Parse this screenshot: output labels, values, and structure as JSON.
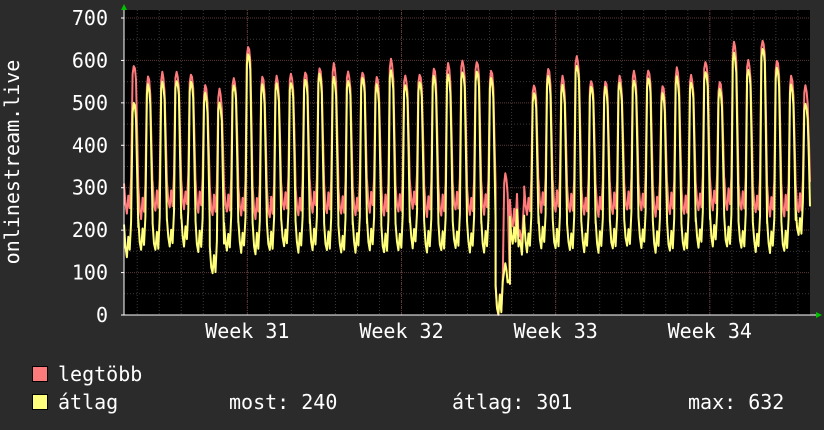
{
  "chart_data": {
    "type": "line",
    "ylabel": "onlinestream.live",
    "ylim": [
      0,
      700
    ],
    "yticks": [
      0,
      100,
      200,
      300,
      400,
      500,
      600,
      700
    ],
    "xlim": [
      30.2,
      34.65
    ],
    "xticks": [
      {
        "label": "Week 31",
        "x": 31
      },
      {
        "label": "Week 32",
        "x": 32
      },
      {
        "label": "Week 33",
        "x": 33
      },
      {
        "label": "Week 34",
        "x": 34
      }
    ],
    "grid": true,
    "background": "#000000",
    "gridColor": "#4a4a4a",
    "series": [
      {
        "name": "legtöbb",
        "color": "#ff7b7b",
        "peaks": [
          590,
          560,
          570,
          575,
          570,
          540,
          530,
          560,
          635,
          560,
          560,
          570,
          575,
          580,
          590,
          575,
          575,
          560,
          600,
          565,
          570,
          580,
          590,
          600,
          600,
          575,
          330,
          200,
          545,
          580,
          560,
          610,
          555,
          550,
          560,
          575,
          580,
          540,
          580,
          565,
          600,
          550,
          640,
          600,
          650,
          600,
          560,
          540
        ],
        "troughs": [
          240,
          230,
          245,
          250,
          250,
          245,
          235,
          240,
          235,
          230,
          230,
          245,
          235,
          245,
          240,
          235,
          235,
          245,
          235,
          240,
          250,
          235,
          235,
          245,
          235,
          240,
          0,
          205,
          235,
          245,
          245,
          240,
          235,
          235,
          240,
          245,
          245,
          235,
          240,
          235,
          245,
          250,
          250,
          245,
          240,
          235,
          235,
          240
        ]
      },
      {
        "name": "átlag",
        "color": "#ffff7b",
        "peaks": [
          500,
          540,
          550,
          555,
          550,
          520,
          500,
          545,
          615,
          540,
          545,
          550,
          555,
          565,
          560,
          555,
          560,
          540,
          575,
          545,
          550,
          560,
          565,
          575,
          575,
          555,
          120,
          180,
          525,
          560,
          540,
          590,
          540,
          535,
          545,
          555,
          560,
          520,
          560,
          550,
          575,
          530,
          615,
          580,
          630,
          580,
          540,
          500
        ],
        "troughs": [
          140,
          155,
          150,
          160,
          165,
          150,
          95,
          150,
          150,
          145,
          150,
          160,
          150,
          155,
          150,
          145,
          150,
          155,
          145,
          150,
          160,
          150,
          150,
          155,
          150,
          150,
          0,
          165,
          150,
          160,
          155,
          150,
          150,
          150,
          155,
          160,
          160,
          150,
          150,
          150,
          160,
          165,
          160,
          155,
          150,
          150,
          150,
          185
        ]
      }
    ]
  },
  "legend": [
    {
      "label": "legtöbb",
      "color": "#ff7b7b"
    },
    {
      "label": "átlag",
      "color": "#ffff7b"
    }
  ],
  "stats": {
    "most": "most: 240",
    "atlag": "átlag: 301",
    "max": "max: 632"
  }
}
